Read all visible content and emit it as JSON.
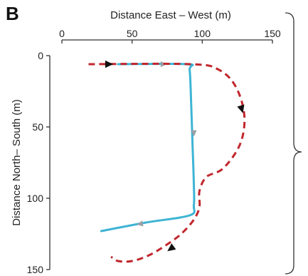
{
  "panel_label": "B",
  "colors": {
    "blue_path": "#3db4d4",
    "red_path": "#c1272d",
    "axis": "#333333",
    "arrow_dark": "#111111",
    "arrow_light": "#9aa0a6"
  },
  "chart_data": {
    "type": "line",
    "title": "",
    "xlabel": "Distance East – West (m)",
    "ylabel": "Distance North– South (m)",
    "xlim": [
      0,
      150
    ],
    "ylim": [
      150,
      0
    ],
    "x_ticks": [
      "0",
      "50",
      "100",
      "150"
    ],
    "y_ticks": [
      "0",
      "50",
      "100",
      "150"
    ],
    "x_tick_values": [
      0,
      50,
      100,
      150
    ],
    "y_tick_values": [
      0,
      50,
      100,
      150
    ],
    "x_axis_position": "top",
    "y_axis_inverted": true,
    "grid": false,
    "series": [
      {
        "style": "solid",
        "color": "#3db4d4",
        "points": [
          [
            40,
            6
          ],
          [
            89,
            6
          ],
          [
            91,
            10
          ],
          [
            92,
            30
          ],
          [
            93,
            60
          ],
          [
            94,
            90
          ],
          [
            94,
            105
          ],
          [
            91,
            112
          ],
          [
            60,
            117
          ],
          [
            28,
            123
          ]
        ],
        "arrows_at": [
          [
            72,
            6
          ],
          [
            94,
            54
          ],
          [
            56,
            118
          ]
        ]
      },
      {
        "style": "dashed",
        "color": "#c1272d",
        "points": [
          [
            19,
            6
          ],
          [
            92,
            6
          ],
          [
            112,
            10
          ],
          [
            124,
            22
          ],
          [
            130,
            42
          ],
          [
            127,
            62
          ],
          [
            115,
            79
          ],
          [
            103,
            85
          ],
          [
            98,
            95
          ],
          [
            98,
            106
          ],
          [
            94,
            115
          ],
          [
            85,
            125
          ],
          [
            74,
            133
          ],
          [
            62,
            140
          ],
          [
            50,
            144
          ],
          [
            40,
            144
          ],
          [
            35,
            141
          ]
        ],
        "arrows_at": [
          [
            33,
            6
          ],
          [
            128,
            37
          ],
          [
            78,
            135
          ]
        ]
      }
    ]
  }
}
